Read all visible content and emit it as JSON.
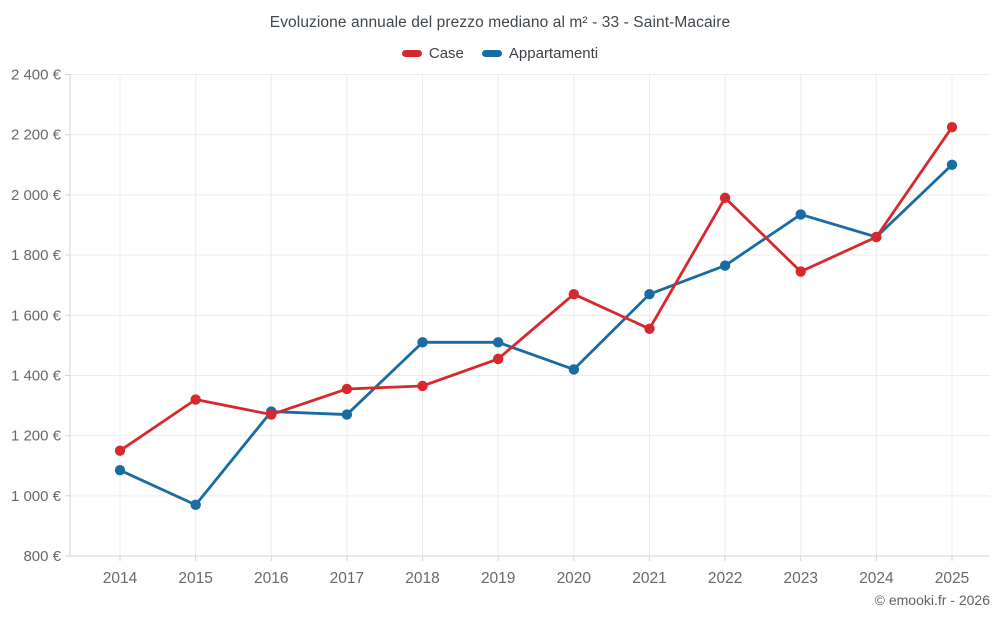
{
  "page": {
    "title": "Evoluzione annuale del prezzo mediano al m² - 33 - Saint-Macaire",
    "footer_credit": "© emooki.fr - 2026",
    "background": "#ffffff"
  },
  "legend": {
    "items": [
      {
        "label": "Case",
        "color": "#d7282e"
      },
      {
        "label": "Appartamenti",
        "color": "#186ba3"
      }
    ]
  },
  "chart_data": {
    "type": "line",
    "title": "Evoluzione annuale del prezzo mediano al m² - 33 - Saint-Macaire",
    "categories": [
      "2014",
      "2015",
      "2016",
      "2017",
      "2018",
      "2019",
      "2020",
      "2021",
      "2022",
      "2023",
      "2024",
      "2025"
    ],
    "series": [
      {
        "name": "Case",
        "color": "#d7282e",
        "values": [
          1150,
          1320,
          1270,
          1355,
          1365,
          1455,
          1670,
          1555,
          1990,
          1745,
          1860,
          2225
        ]
      },
      {
        "name": "Appartamenti",
        "color": "#186ba3",
        "values": [
          1085,
          970,
          1280,
          1270,
          1510,
          1510,
          1420,
          1670,
          1765,
          1935,
          1860,
          2100
        ]
      }
    ],
    "xlabel": "",
    "ylabel": "",
    "ylim": [
      800,
      2400
    ],
    "y_ticks": [
      800,
      1000,
      1200,
      1400,
      1600,
      1800,
      2000,
      2200,
      2400
    ],
    "y_tick_labels": [
      "800 €",
      "1 000 €",
      "1 200 €",
      "1 400 €",
      "1 600 €",
      "1 800 €",
      "2 000 €",
      "2 200 €",
      "2 400 €"
    ],
    "grid": true,
    "legend_position": "top",
    "colors": {
      "grid": "#ececec",
      "axis": "#d4d4d4",
      "tick_label": "#66696c",
      "title": "#3f464c"
    }
  }
}
